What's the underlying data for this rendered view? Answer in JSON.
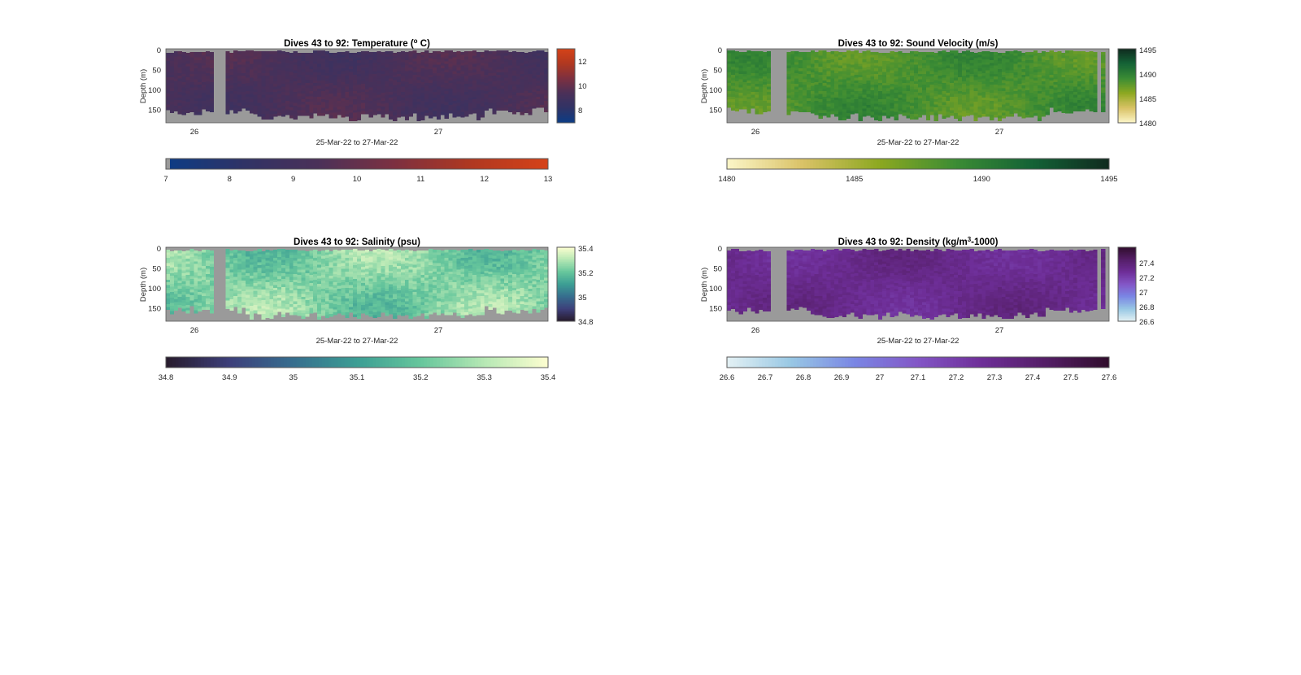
{
  "chart_data": [
    {
      "type": "heatmap",
      "title": "Dives 43 to 92: Temperature (° C)",
      "title_parts": [
        "Dives 43 to 92: Temperature (",
        "o",
        " C)"
      ],
      "xlabel": "25-Mar-22 to 27-Mar-22",
      "ylabel": "Depth (m)",
      "x_ticks": [
        "26",
        "27"
      ],
      "y_ticks": [
        0,
        50,
        100,
        150
      ],
      "ylim": [
        0,
        185
      ],
      "x_range": [
        "25-Mar-22 21:30",
        "27-Mar-22 19:00"
      ],
      "side_colorbar": {
        "range": [
          7.4,
          13.4
        ],
        "ticks": [
          8,
          10,
          12
        ]
      },
      "bottom_colorbar": {
        "range": [
          7,
          13
        ],
        "ticks": [
          7,
          8,
          9,
          10,
          11,
          12,
          13
        ]
      },
      "colors": [
        "#0c3c85",
        "#2f3366",
        "#4b3058",
        "#7d3040",
        "#b03820",
        "#d54218"
      ],
      "value_range_shown": [
        9.0,
        10.3
      ],
      "no_data_color": "#9a9a9a"
    },
    {
      "type": "heatmap",
      "title": "Dives 43 to 92: Sound Velocity (m/s)",
      "title_parts": [
        "Dives 43 to 92: Sound Velocity (m/s)",
        "",
        ""
      ],
      "xlabel": "25-Mar-22 to 27-Mar-22",
      "ylabel": "Depth (m)",
      "x_ticks": [
        "26",
        "27"
      ],
      "y_ticks": [
        0,
        50,
        100,
        150
      ],
      "ylim": [
        0,
        185
      ],
      "x_range": [
        "25-Mar-22 21:30",
        "27-Mar-22 19:00"
      ],
      "side_colorbar": {
        "range": [
          1480,
          1495
        ],
        "ticks": [
          1480,
          1485,
          1490,
          1495
        ]
      },
      "bottom_colorbar": {
        "range": [
          1480,
          1495
        ],
        "ticks": [
          1480,
          1485,
          1490,
          1495
        ]
      },
      "colors": [
        "#fcf6c8",
        "#d9c266",
        "#8ca820",
        "#3b8c34",
        "#146236",
        "#0f2a1e"
      ],
      "value_range_shown": [
        1486.5,
        1490.5
      ],
      "no_data_color": "#9a9a9a"
    },
    {
      "type": "heatmap",
      "title": "Dives 43 to 92: Salinity (psu)",
      "title_parts": [
        "Dives 43 to 92: Salinity (psu)",
        "",
        ""
      ],
      "xlabel": "25-Mar-22 to 27-Mar-22",
      "ylabel": "Depth (m)",
      "x_ticks": [
        "26",
        "27"
      ],
      "y_ticks": [
        0,
        50,
        100,
        150
      ],
      "ylim": [
        0,
        185
      ],
      "x_range": [
        "25-Mar-22 21:30",
        "27-Mar-22 19:00"
      ],
      "side_colorbar": {
        "range": [
          34.8,
          35.4
        ],
        "ticks": [
          "34.8",
          "35",
          "35.2",
          "35.4"
        ]
      },
      "bottom_colorbar": {
        "range": [
          34.8,
          35.4
        ],
        "ticks": [
          "34.8",
          "34.9",
          "35",
          "35.1",
          "35.2",
          "35.3",
          "35.4"
        ]
      },
      "colors": [
        "#271b2c",
        "#3d3f7a",
        "#366e8e",
        "#3c9e94",
        "#66c69c",
        "#b6e8b4",
        "#fdfed0"
      ],
      "value_range_shown": [
        35.1,
        35.35
      ],
      "no_data_color": "#9a9a9a"
    },
    {
      "type": "heatmap",
      "title": "Dives 43 to 92: Density (kg/m³-1000)",
      "title_parts": [
        "Dives 43 to 92: Density (kg/m",
        "3",
        "-1000)"
      ],
      "xlabel": "25-Mar-22 to 27-Mar-22",
      "ylabel": "Depth (m)",
      "x_ticks": [
        "26",
        "27"
      ],
      "y_ticks": [
        0,
        50,
        100,
        150
      ],
      "ylim": [
        0,
        185
      ],
      "x_range": [
        "25-Mar-22 21:30",
        "27-Mar-22 19:00"
      ],
      "side_colorbar": {
        "range": [
          26.6,
          27.6
        ],
        "ticks": [
          "26.6",
          "26.8",
          "27",
          "27.2",
          "27.4"
        ]
      },
      "bottom_colorbar": {
        "range": [
          26.6,
          27.6
        ],
        "ticks": [
          "26.6",
          "26.7",
          "26.8",
          "26.9",
          "27",
          "27.1",
          "27.2",
          "27.3",
          "27.4",
          "27.5",
          "27.6"
        ]
      },
      "colors": [
        "#e4f1f4",
        "#98c8e4",
        "#7a86e4",
        "#8356c6",
        "#6e2e98",
        "#541e66",
        "#300d2c"
      ],
      "value_range_shown": [
        27.2,
        27.4
      ],
      "no_data_color": "#9a9a9a"
    }
  ]
}
